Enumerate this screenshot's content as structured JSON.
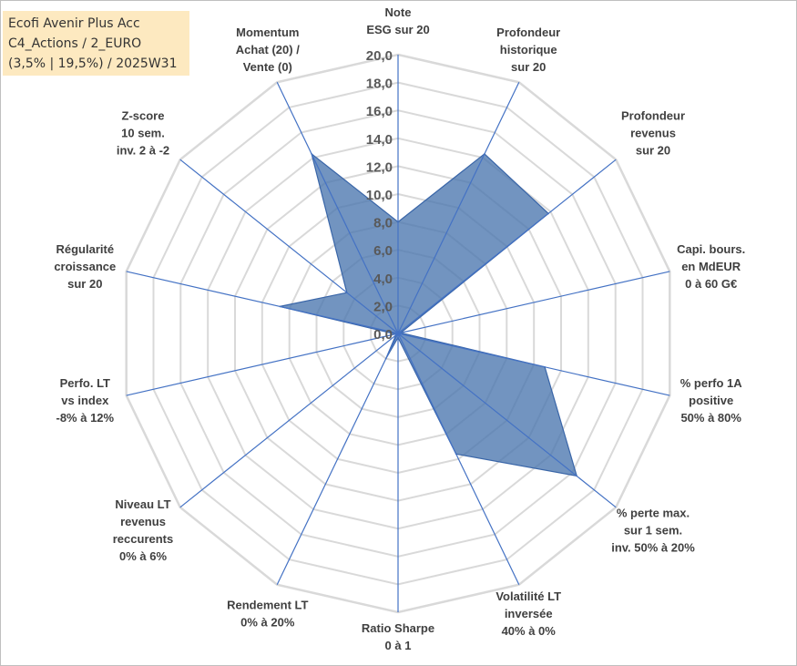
{
  "title_lines": [
    "Ecofi Avenir Plus Acc",
    "C4_Actions / 2_EURO",
    "(3,5% | 19,5%) / 2025W31"
  ],
  "colors": {
    "grid": "#d9d9d9",
    "spoke": "#4472c4",
    "fill": "#4a76ae",
    "title_bg": "#fde9c0"
  },
  "chart_data": {
    "type": "radar",
    "rmin": 0,
    "rmax": 20,
    "tick_step": 2,
    "tick_labels": [
      "0,0",
      "2,0",
      "4,0",
      "6,0",
      "8,0",
      "10,0",
      "12,0",
      "14,0",
      "16,0",
      "18,0",
      "20,0"
    ],
    "axes": [
      {
        "label": [
          "Note",
          "ESG sur 20"
        ],
        "value": 8.0
      },
      {
        "label": [
          "Profondeur",
          "historique",
          "sur 20"
        ],
        "value": 14.3
      },
      {
        "label": [
          "Profondeur",
          "revenus",
          "sur 20"
        ],
        "value": 13.8
      },
      {
        "label": [
          "Capi. bours.",
          "en MdEUR",
          "0 à 60 G€"
        ],
        "value": 0.2
      },
      {
        "label": [
          "% perfo 1A",
          "positive",
          "50% à 80%"
        ],
        "value": 10.8
      },
      {
        "label": [
          "% perte max.",
          "sur 1 sem.",
          "inv. 50% à 20%"
        ],
        "value": 16.4
      },
      {
        "label": [
          "Volatilité LT",
          "inversée",
          "40% à 0%"
        ],
        "value": 9.6
      },
      {
        "label": [
          "Ratio Sharpe",
          "0 à 1"
        ],
        "value": 0.3
      },
      {
        "label": [
          "Rendement LT",
          "0% à 20%"
        ],
        "value": 2.0
      },
      {
        "label": [
          "Niveau LT",
          "revenus",
          "reccurents",
          "0% à 6%"
        ],
        "value": 0.2
      },
      {
        "label": [
          "Perfo. LT",
          "vs index",
          "-8% à 12%"
        ],
        "value": 0.2
      },
      {
        "label": [
          "Régularité",
          "croissance",
          "sur 20"
        ],
        "value": 8.7
      },
      {
        "label": [
          "Z-score",
          "10 sem.",
          "inv. 2 à -2"
        ],
        "value": 4.7
      },
      {
        "label": [
          "Momentum",
          "Achat (20) /",
          "Vente (0)"
        ],
        "value": 14.3
      }
    ]
  }
}
